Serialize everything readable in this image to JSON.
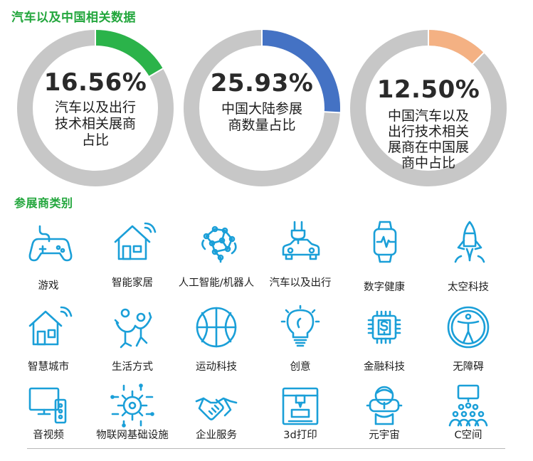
{
  "headings": {
    "section1": "汽车以及中国相关数据",
    "section2": "参展商类别"
  },
  "chart_data": {
    "type": "pie",
    "variant": "donut",
    "charts": [
      {
        "value": 16.56,
        "label": "16.56%",
        "caption_lines": [
          "汽车以及出行",
          "技术相关展商",
          "占比"
        ],
        "color": "#2bb34a"
      },
      {
        "value": 25.93,
        "label": "25.93%",
        "caption_lines": [
          "中国大陆参展",
          "商数量占比"
        ],
        "color": "#4472c4"
      },
      {
        "value": 12.5,
        "label": "12.50%",
        "caption_lines": [
          "中国汽车以及",
          "出行技术相关",
          "展商在中国展",
          "商中占比"
        ],
        "color": "#f4b183"
      }
    ],
    "remainder_color": "#c7c7c7"
  },
  "colors": {
    "icon": "#1a9fd8",
    "heading": "#22a63c"
  },
  "categories": [
    {
      "label": "游戏",
      "icon": "gamepad-icon"
    },
    {
      "label": "智能家居",
      "icon": "smart-home-icon"
    },
    {
      "label": "人工智能/机器人",
      "icon": "ai-brain-icon"
    },
    {
      "label": "汽车以及出行",
      "icon": "electric-car-icon"
    },
    {
      "label": "数字健康",
      "icon": "smartwatch-icon"
    },
    {
      "label": "太空科技",
      "icon": "rocket-icon"
    },
    {
      "label": "智慧城市",
      "icon": "smart-city-icon"
    },
    {
      "label": "生活方式",
      "icon": "lifestyle-icon"
    },
    {
      "label": "运动科技",
      "icon": "basketball-icon"
    },
    {
      "label": "创意",
      "icon": "lightbulb-icon"
    },
    {
      "label": "金融科技",
      "icon": "fintech-chip-icon"
    },
    {
      "label": "无障碍",
      "icon": "accessibility-icon"
    },
    {
      "label": "音视频",
      "icon": "audio-video-icon"
    },
    {
      "label": "物联网基础设施",
      "icon": "iot-gear-icon"
    },
    {
      "label": "企业服务",
      "icon": "handshake-icon"
    },
    {
      "label": "3d打印",
      "icon": "3d-printer-icon"
    },
    {
      "label": "元宇宙",
      "icon": "vr-headset-icon"
    },
    {
      "label": "C空间",
      "icon": "c-space-audience-icon"
    }
  ]
}
